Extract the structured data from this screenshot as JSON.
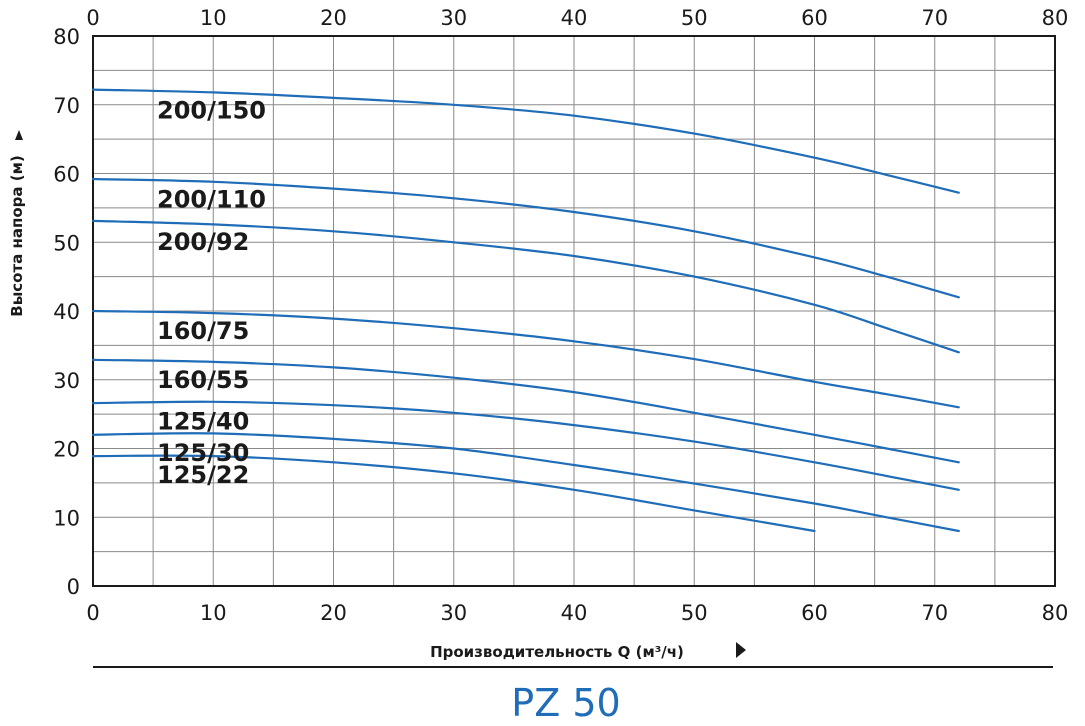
{
  "chart_data": {
    "type": "line",
    "title": "PZ 50",
    "xlabel": "Производительность Q (м³/ч)",
    "ylabel": "Высота напора (м)",
    "xlim": [
      0,
      80
    ],
    "ylim": [
      0,
      80
    ],
    "x_ticks": [
      "0",
      "10",
      "20",
      "30",
      "40",
      "50",
      "60",
      "70",
      "80"
    ],
    "y_ticks": [
      "0",
      "10",
      "20",
      "30",
      "40",
      "50",
      "60",
      "70",
      "80"
    ],
    "grid": true,
    "line_color": "#1f6db8",
    "series": [
      {
        "name": "200/150",
        "x": [
          0,
          10,
          20,
          30,
          40,
          50,
          60,
          66,
          72
        ],
        "y": [
          72.2,
          71.8,
          71.0,
          70.0,
          68.4,
          65.8,
          62.3,
          59.8,
          57.2
        ]
      },
      {
        "name": "200/110",
        "x": [
          0,
          10,
          20,
          30,
          40,
          50,
          60,
          66,
          72
        ],
        "y": [
          59.2,
          58.8,
          57.8,
          56.4,
          54.4,
          51.6,
          47.8,
          45.0,
          42.0
        ]
      },
      {
        "name": "200/92",
        "x": [
          0,
          10,
          20,
          30,
          40,
          50,
          60,
          66,
          72
        ],
        "y": [
          53.1,
          52.6,
          51.6,
          50.0,
          48.0,
          45.0,
          40.9,
          37.5,
          34.0
        ]
      },
      {
        "name": "160/75",
        "x": [
          0,
          10,
          20,
          30,
          40,
          50,
          60,
          66,
          72
        ],
        "y": [
          40.0,
          39.7,
          38.9,
          37.5,
          35.6,
          33.0,
          29.7,
          27.9,
          26.0
        ]
      },
      {
        "name": "160/55",
        "x": [
          0,
          10,
          20,
          30,
          40,
          50,
          60,
          66,
          72
        ],
        "y": [
          32.9,
          32.6,
          31.8,
          30.3,
          28.2,
          25.2,
          22.0,
          20.0,
          18.0
        ]
      },
      {
        "name": "125/40",
        "x": [
          0,
          10,
          20,
          30,
          40,
          50,
          60,
          66,
          72
        ],
        "y": [
          26.6,
          26.8,
          26.3,
          25.2,
          23.4,
          21.0,
          18.0,
          16.0,
          14.0
        ]
      },
      {
        "name": "125/30",
        "x": [
          0,
          10,
          20,
          30,
          40,
          50,
          60,
          66,
          72
        ],
        "y": [
          22.0,
          22.2,
          21.4,
          20.0,
          17.6,
          14.9,
          12.0,
          10.0,
          8.0
        ]
      },
      {
        "name": "125/22",
        "x": [
          0,
          10,
          20,
          30,
          40,
          50,
          60
        ],
        "y": [
          18.9,
          18.9,
          18.0,
          16.4,
          14.0,
          11.0,
          8.0
        ]
      }
    ]
  }
}
